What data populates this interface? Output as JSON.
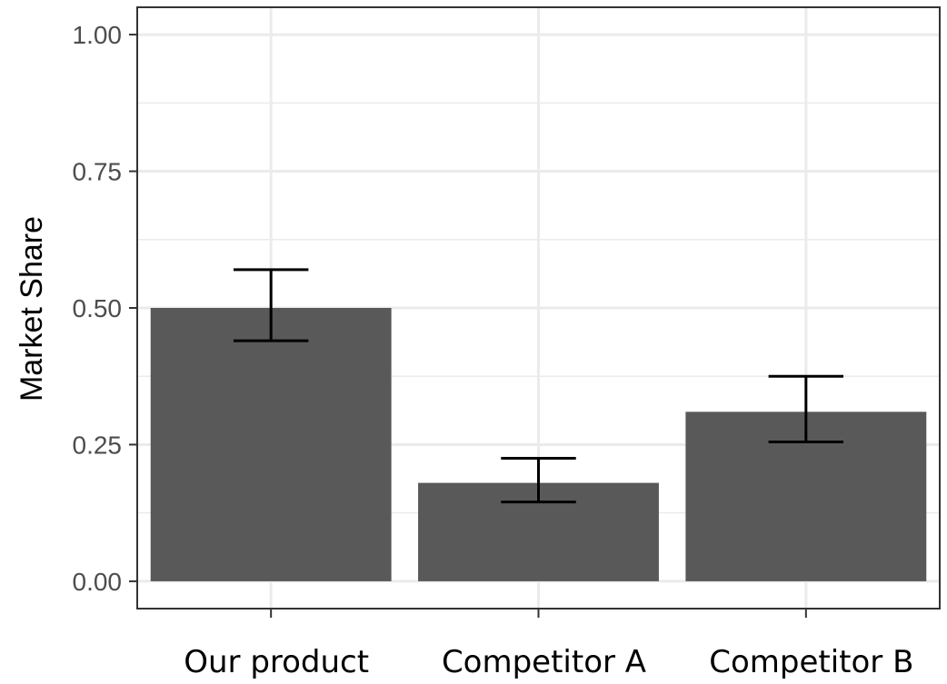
{
  "chart_data": {
    "type": "bar",
    "title": "",
    "xlabel": "",
    "ylabel": "Market Share",
    "categories": [
      "Our product",
      "Competitor A",
      "Competitor B"
    ],
    "values": [
      0.5,
      0.18,
      0.31
    ],
    "error_bars": {
      "lower": [
        0.44,
        0.145,
        0.255
      ],
      "upper": [
        0.57,
        0.225,
        0.375
      ]
    },
    "ylim": [
      -0.05,
      1.05
    ],
    "yticks": [
      0.0,
      0.25,
      0.5,
      0.75,
      1.0
    ],
    "ytick_labels": [
      "0.00",
      "0.25",
      "0.50",
      "0.75",
      "1.00"
    ],
    "grid": true,
    "legend": "none",
    "colors": {
      "bar": "#595959",
      "grid": "#ebebeb",
      "panel_border": "#333333",
      "error_bar": "#000000",
      "tick": "#333333",
      "background": "#ffffff"
    }
  }
}
